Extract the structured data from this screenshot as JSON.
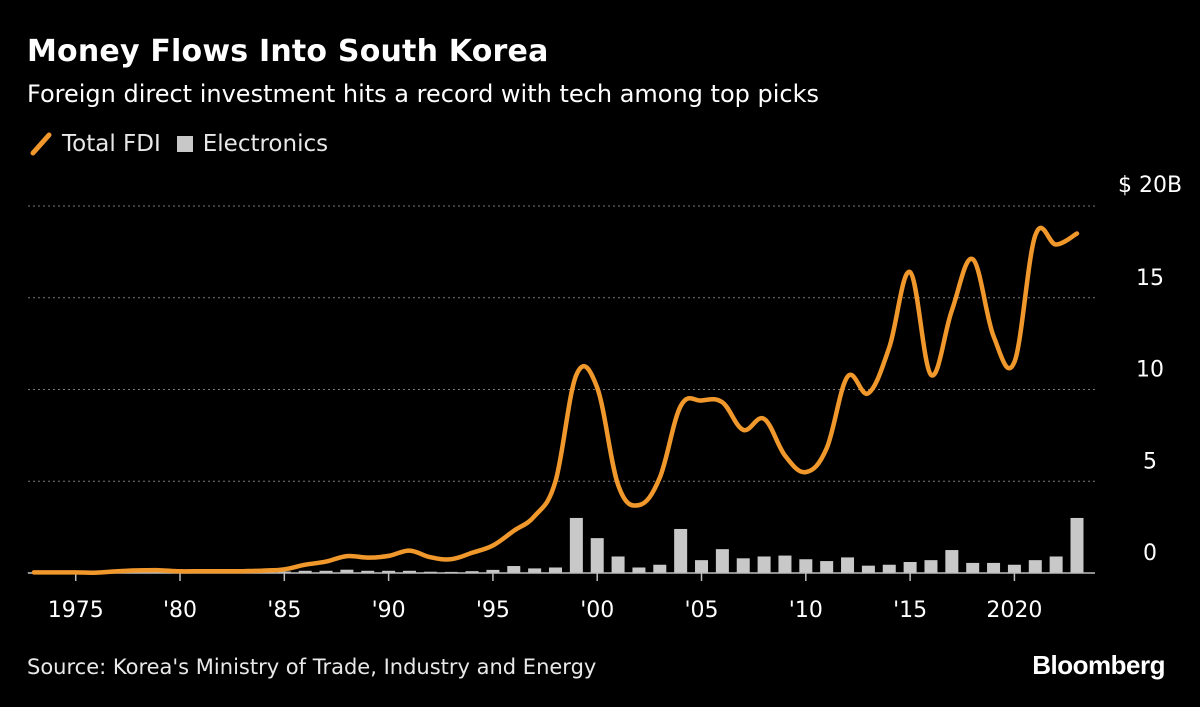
{
  "header": {
    "title": "Money Flows Into South Korea",
    "subtitle": "Foreign direct investment hits a record with tech among top picks"
  },
  "legend": {
    "line_label": "Total FDI",
    "bar_label": "Electronics"
  },
  "footer": {
    "source": "Source: Korea's Ministry of Trade, Industry and Energy",
    "brand": "Bloomberg"
  },
  "colors": {
    "background": "#000000",
    "line": "#f0982b",
    "bars": "#c8c8c8",
    "grid": "#7a7a7a",
    "text": "#ffffff"
  },
  "chart_data": {
    "type": "bar+line",
    "title": "Money Flows Into South Korea",
    "subtitle": "Foreign direct investment hits a record with tech among top picks",
    "x": [
      1973,
      1974,
      1975,
      1976,
      1977,
      1978,
      1979,
      1980,
      1981,
      1982,
      1983,
      1984,
      1985,
      1986,
      1987,
      1988,
      1989,
      1990,
      1991,
      1992,
      1993,
      1994,
      1995,
      1996,
      1997,
      1998,
      1999,
      2000,
      2001,
      2002,
      2003,
      2004,
      2005,
      2006,
      2007,
      2008,
      2009,
      2010,
      2011,
      2012,
      2013,
      2014,
      2015,
      2016,
      2017,
      2018,
      2019,
      2020,
      2021,
      2022,
      2023
    ],
    "series": [
      {
        "name": "Total FDI",
        "type": "line",
        "values": [
          0.03,
          0.03,
          0.03,
          0.02,
          0.1,
          0.14,
          0.15,
          0.09,
          0.1,
          0.09,
          0.1,
          0.13,
          0.2,
          0.45,
          0.62,
          0.92,
          0.84,
          0.93,
          1.22,
          0.86,
          0.75,
          1.1,
          1.5,
          2.3,
          3.1,
          5.0,
          10.8,
          10.1,
          4.8,
          3.7,
          5.2,
          9.1,
          9.4,
          9.3,
          7.8,
          8.4,
          6.4,
          5.5,
          6.8,
          10.7,
          9.8,
          12.3,
          16.4,
          10.8,
          14.3,
          17.1,
          12.9,
          11.5,
          18.4,
          17.9,
          18.5
        ]
      },
      {
        "name": "Electronics",
        "type": "bar",
        "values": [
          0.03,
          0.02,
          0.02,
          0.02,
          0.07,
          0.07,
          0.08,
          0.07,
          0.06,
          0.05,
          0.05,
          0.07,
          0.08,
          0.12,
          0.12,
          0.18,
          0.12,
          0.12,
          0.12,
          0.07,
          0.06,
          0.1,
          0.17,
          0.38,
          0.25,
          0.3,
          3.0,
          1.9,
          0.9,
          0.3,
          0.45,
          2.4,
          0.7,
          1.3,
          0.8,
          0.9,
          0.95,
          0.75,
          0.65,
          0.85,
          0.4,
          0.45,
          0.6,
          0.7,
          1.25,
          0.55,
          0.55,
          0.45,
          0.7,
          0.9,
          3.0
        ]
      }
    ],
    "ylim": [
      0,
      20
    ],
    "yticks": [
      {
        "value": 20,
        "label": "$ 20B"
      },
      {
        "value": 15,
        "label": "15"
      },
      {
        "value": 10,
        "label": "10"
      },
      {
        "value": 5,
        "label": "5"
      },
      {
        "value": 0,
        "label": "0"
      }
    ],
    "xticks": [
      {
        "value": 1975,
        "label": "1975"
      },
      {
        "value": 1980,
        "label": "'80"
      },
      {
        "value": 1985,
        "label": "'85"
      },
      {
        "value": 1990,
        "label": "'90"
      },
      {
        "value": 1995,
        "label": "'95"
      },
      {
        "value": 2000,
        "label": "'00"
      },
      {
        "value": 2005,
        "label": "'05"
      },
      {
        "value": 2010,
        "label": "'10"
      },
      {
        "value": 2015,
        "label": "'15"
      },
      {
        "value": 2020,
        "label": "2020"
      }
    ],
    "xlabel": "",
    "ylabel": "",
    "grid": true,
    "legend_position": "top-left",
    "y_axis_side": "right"
  }
}
